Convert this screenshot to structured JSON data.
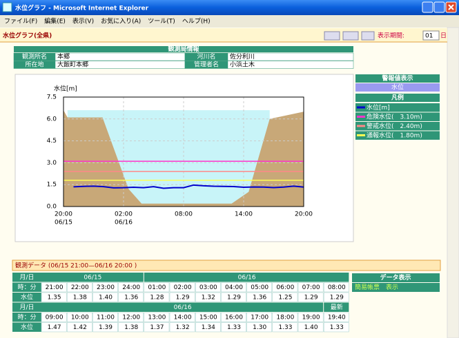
{
  "window": {
    "title": "水位グラフ - Microsoft Internet Explorer",
    "menu": [
      "ファイル(F)",
      "編集(E)",
      "表示(V)",
      "お気に入り(A)",
      "ツール(T)",
      "ヘルプ(H)"
    ]
  },
  "page": {
    "title": "水位グラフ(全県)",
    "period_label": "表示期間:",
    "period_value": "01",
    "period_unit": "日"
  },
  "station": {
    "header": "観測局情報",
    "rows": [
      [
        "観測所名",
        "本郷",
        "河川名",
        "佐分利川"
      ],
      [
        "所在地",
        "大飯町本郷",
        "管理者名",
        "小浜土木"
      ]
    ]
  },
  "side": {
    "alarm_header": "警報値表示",
    "alarm_button": "水位",
    "legend_header": "凡例"
  },
  "chart_data": {
    "type": "line",
    "y_label": "水位[m]",
    "xlim": [
      0,
      24
    ],
    "ylim": [
      0,
      7.5
    ],
    "yticks": [
      {
        "value": 0,
        "label": "0.0"
      },
      1.5,
      {
        "value": 3,
        "label": "3.0"
      },
      4.5,
      {
        "value": 6,
        "label": "6.0"
      },
      7.5
    ],
    "xticks": [
      {
        "value": 0,
        "label": "20:00"
      },
      {
        "value": 6,
        "label": "02:00"
      },
      {
        "value": 12,
        "label": "08:00"
      },
      {
        "value": 18,
        "label": "14:00"
      },
      {
        "value": 24,
        "label": "20:00"
      }
    ],
    "x_date_labels": [
      {
        "value": 0,
        "label": "06/15"
      },
      {
        "value": 6,
        "label": "06/16"
      }
    ],
    "grid": true,
    "x": [
      1,
      2,
      3,
      4,
      5,
      6,
      7,
      8,
      9,
      10,
      11,
      12,
      13,
      14,
      15,
      16,
      17,
      18,
      19,
      20,
      21,
      22,
      23,
      24
    ],
    "series": [
      {
        "name": "水位[m]",
        "color": "#0000cc",
        "values": [
          1.35,
          1.38,
          1.4,
          1.36,
          1.28,
          1.29,
          1.32,
          1.29,
          1.36,
          1.25,
          1.29,
          1.29,
          1.47,
          1.42,
          1.39,
          1.38,
          1.37,
          1.32,
          1.34,
          1.33,
          1.3,
          1.33,
          1.4,
          1.33
        ],
        "value_labels": [
          "1.35",
          "1.38",
          "1.40",
          "1.36",
          "1.28",
          "1.29",
          "1.32",
          "1.29",
          "1.36",
          "1.25",
          "1.29",
          "1.29",
          "1.47",
          "1.42",
          "1.39",
          "1.38",
          "1.37",
          "1.32",
          "1.34",
          "1.33",
          "1.30",
          "1.33",
          "1.40",
          "1.33"
        ]
      }
    ],
    "thresholds": [
      {
        "name": "危険水位(　3.10m)",
        "value": 3.1,
        "color": "#ff33cc"
      },
      {
        "name": "警戒水位(　2.40m)",
        "value": 2.4,
        "color": "#ff8888"
      },
      {
        "name": "通報水位(　1.80m)",
        "value": 1.8,
        "color": "#ffff55"
      }
    ],
    "cross_section": {
      "color": "#c8a878",
      "x": [
        0,
        0.4,
        3.9,
        6.5,
        7.8,
        16.8,
        18.5,
        20.6,
        24
      ],
      "values": [
        6.6,
        6.1,
        6.1,
        1.2,
        0.2,
        0.2,
        1.0,
        6.0,
        6.5
      ]
    }
  },
  "data_table": {
    "header": "観測データ (06/15 21:00—06/16 20:00 )",
    "row_labels": [
      "月/日",
      "時：分",
      "水位"
    ],
    "date_groups": [
      [
        {
          "label": "06/15",
          "span": 4
        },
        {
          "label": "06/16",
          "span": 8
        }
      ],
      [
        {
          "label": "06/16",
          "span": 11
        },
        {
          "label": "最新",
          "span": 1
        }
      ]
    ],
    "times": [
      "21:00",
      "22:00",
      "23:00",
      "24:00",
      "01:00",
      "02:00",
      "03:00",
      "04:00",
      "05:00",
      "06:00",
      "07:00",
      "08:00",
      "09:00",
      "10:00",
      "11:00",
      "12:00",
      "13:00",
      "14:00",
      "15:00",
      "16:00",
      "17:00",
      "18:00",
      "19:00",
      "19:40"
    ]
  },
  "side_buttons": {
    "header": "データ表示",
    "button": "簡易帳票　表示"
  }
}
